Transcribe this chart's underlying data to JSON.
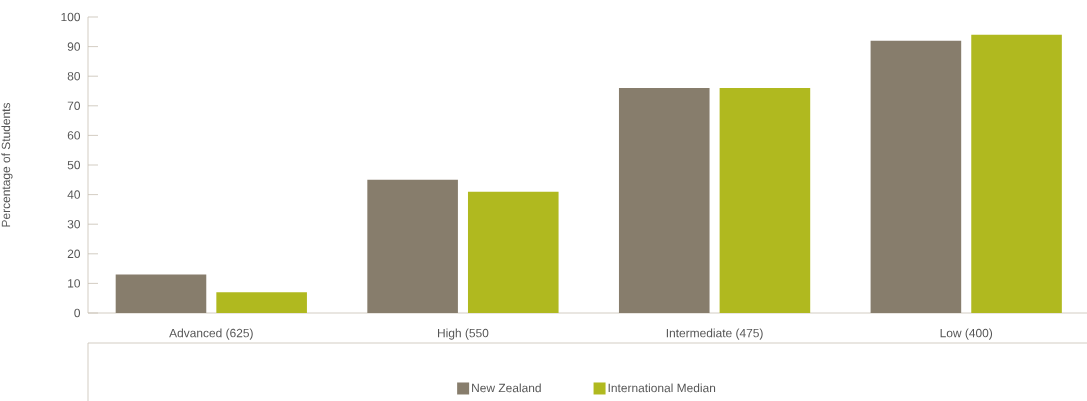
{
  "chart_data": {
    "type": "bar",
    "ylabel": "Percentage of Students",
    "categories": [
      "Advanced (625)",
      "High (550",
      "Intermediate (475)",
      "Low (400)"
    ],
    "series": [
      {
        "name": "New Zealand",
        "color": "#877d6c",
        "values": [
          13,
          45,
          76,
          92
        ]
      },
      {
        "name": "International Median",
        "color": "#b0b91f",
        "values": [
          7,
          41,
          76,
          94
        ]
      }
    ],
    "ylim": [
      0,
      100
    ],
    "yticks": [
      0,
      10,
      20,
      30,
      40,
      50,
      60,
      70,
      80,
      90,
      100
    ],
    "legend": "bottom"
  }
}
